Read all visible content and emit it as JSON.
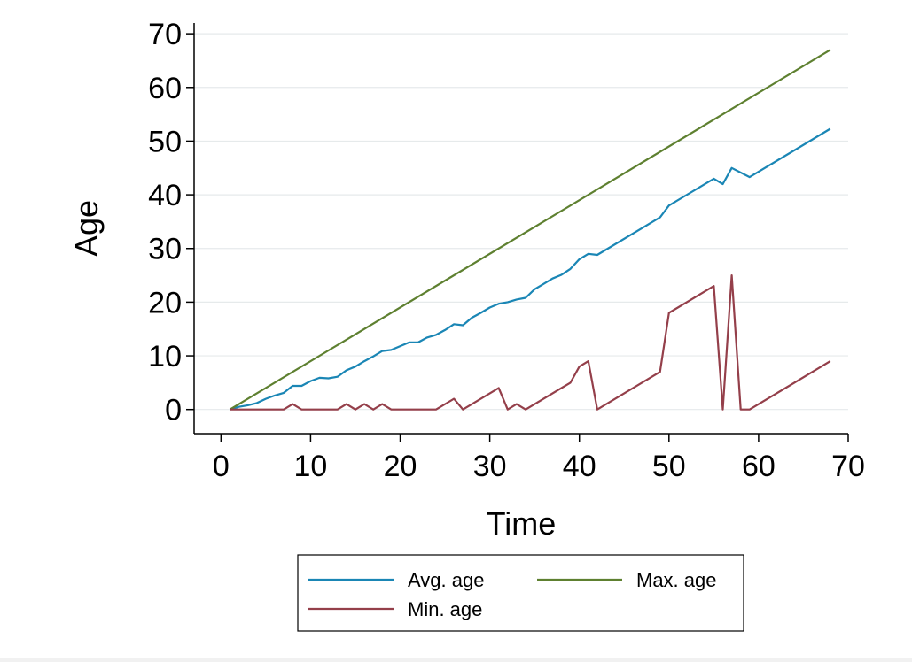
{
  "chart_data": {
    "type": "line",
    "title": "",
    "xlabel": "Time",
    "ylabel": "Age",
    "xlim": [
      -3,
      70
    ],
    "ylim": [
      -4.5,
      72
    ],
    "xticks": [
      0,
      10,
      20,
      30,
      40,
      50,
      60,
      70
    ],
    "yticks": [
      0,
      10,
      20,
      30,
      40,
      50,
      60,
      70
    ],
    "grid": true,
    "legend_position": "bottom",
    "series": [
      {
        "name": "Avg. age",
        "color": "#1a86b5",
        "x": [
          1,
          2,
          3,
          4,
          5,
          6,
          7,
          8,
          9,
          10,
          11,
          12,
          13,
          14,
          15,
          16,
          17,
          18,
          19,
          20,
          21,
          22,
          23,
          24,
          25,
          26,
          27,
          28,
          29,
          30,
          31,
          32,
          33,
          34,
          35,
          36,
          37,
          38,
          39,
          40,
          41,
          42,
          49,
          50,
          55,
          56,
          57,
          59,
          68
        ],
        "y": [
          0,
          0.5,
          0.8,
          1.2,
          2,
          2.6,
          3.1,
          4.4,
          4.4,
          5.3,
          5.9,
          5.8,
          6.1,
          7.3,
          8,
          9,
          9.9,
          10.9,
          11.1,
          11.8,
          12.5,
          12.5,
          13.4,
          13.9,
          14.8,
          15.9,
          15.7,
          17.1,
          18,
          19,
          19.7,
          20,
          20.5,
          20.8,
          22.4,
          23.4,
          24.4,
          25.1,
          26.2,
          28,
          29,
          28.8,
          35.8,
          38,
          43,
          42,
          45,
          43.3,
          52.3
        ]
      },
      {
        "name": "Max. age",
        "color": "#5e8030",
        "x": [
          1,
          68
        ],
        "y": [
          0,
          67
        ]
      },
      {
        "name": "Min. age",
        "color": "#943f4a",
        "x": [
          1,
          7,
          8,
          9,
          13,
          14,
          15,
          16,
          17,
          18,
          19,
          24,
          26,
          27,
          31,
          32,
          33,
          34,
          39,
          40,
          41,
          42,
          49,
          50,
          55,
          56,
          57,
          58,
          59,
          68
        ],
        "y": [
          0,
          0,
          1,
          0,
          0,
          1,
          0,
          1,
          0,
          1,
          0,
          0,
          2,
          0,
          4,
          0,
          1,
          0,
          5,
          8,
          9,
          0,
          7,
          18,
          23,
          0,
          25,
          0,
          0,
          9
        ]
      }
    ]
  }
}
